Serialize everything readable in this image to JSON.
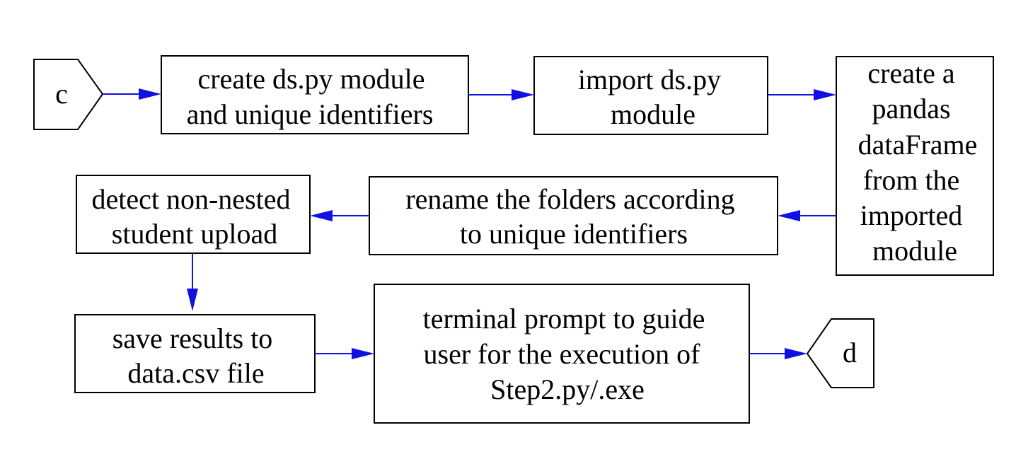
{
  "diagram": {
    "colors": {
      "arrow": "#1010e0",
      "border": "#000000",
      "background": "#ffffff"
    },
    "connectors": {
      "start": {
        "label": "c"
      },
      "end": {
        "label": "d"
      }
    },
    "steps": {
      "create_module": {
        "lines": [
          "create ds.py module",
          "and unique identifiers"
        ]
      },
      "import_module": {
        "lines": [
          "import ds.py",
          "module"
        ]
      },
      "create_dataframe": {
        "lines": [
          "create a",
          "pandas",
          "dataFrame",
          "from the",
          "imported",
          "module"
        ]
      },
      "rename_folders": {
        "lines": [
          "rename the folders according",
          "to unique identifiers"
        ]
      },
      "detect_upload": {
        "lines": [
          "detect non-nested",
          "student upload"
        ]
      },
      "save_results": {
        "lines": [
          "save results to",
          "data.csv file"
        ]
      },
      "terminal_prompt": {
        "lines": [
          "terminal prompt to guide",
          "user for the execution of",
          "Step2.py/.exe"
        ]
      }
    }
  }
}
